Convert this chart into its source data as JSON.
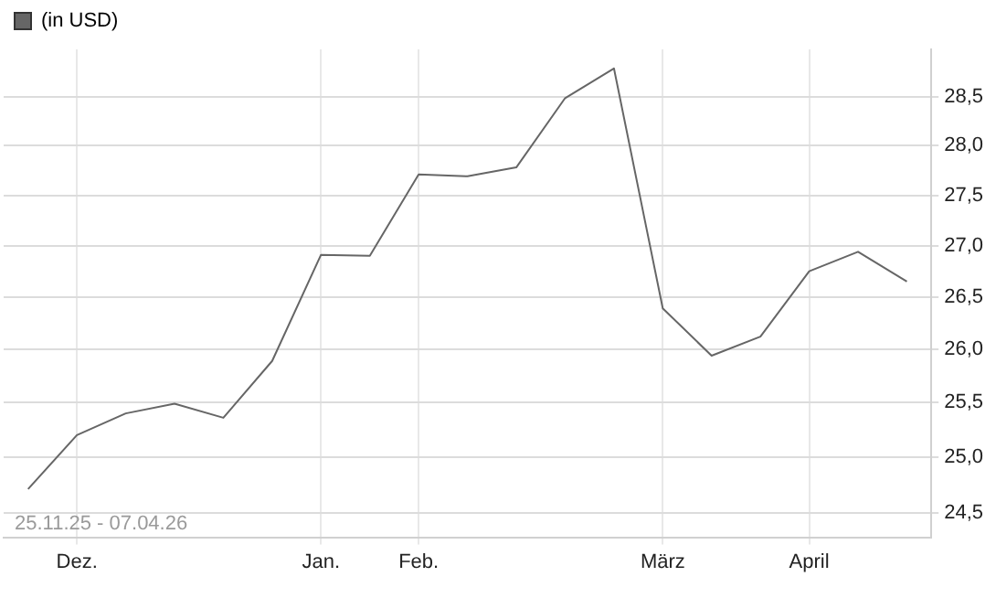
{
  "chart_data": {
    "type": "line",
    "categories": [
      null,
      "Dez.",
      null,
      null,
      null,
      null,
      "Jan.",
      null,
      "Feb.",
      null,
      null,
      null,
      null,
      "März",
      null,
      null,
      "April",
      null,
      null
    ],
    "series": [
      {
        "name": "(in USD)",
        "color": "#666666",
        "values": [
          24.71,
          25.2,
          25.4,
          25.49,
          25.36,
          25.89,
          26.91,
          26.9,
          27.71,
          27.69,
          27.78,
          28.49,
          28.8,
          26.39,
          25.94,
          26.12,
          26.75,
          26.94,
          26.65
        ]
      }
    ],
    "ylim": [
      24.28,
      29.0
    ],
    "log": "y",
    "yticks": [
      {
        "value": 24.5,
        "label": "24,5"
      },
      {
        "value": 25,
        "label": "25,0"
      },
      {
        "value": 25.5,
        "label": "25,5"
      },
      {
        "value": 26,
        "label": "26,0"
      },
      {
        "value": 26.5,
        "label": "26,5"
      },
      {
        "value": 27,
        "label": "27,0"
      },
      {
        "value": 27.5,
        "label": "27,5"
      },
      {
        "value": 28,
        "label": "28,0"
      },
      {
        "value": 28.5,
        "label": "28,5"
      }
    ],
    "annotations": [
      "25.11.25 - 07.04.26"
    ],
    "grid": true,
    "legend": "top left",
    "marker": "none",
    "line_style": "solid"
  }
}
